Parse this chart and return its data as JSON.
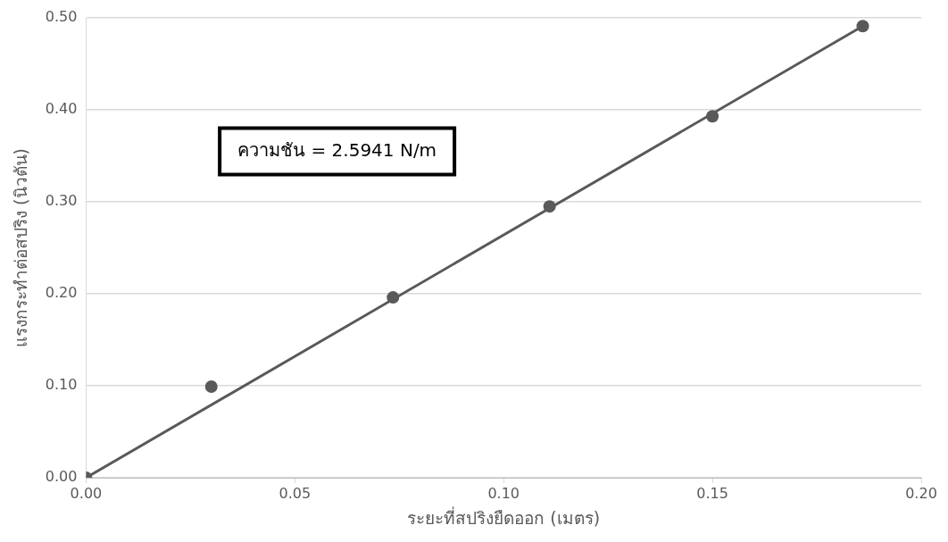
{
  "chart_data": {
    "type": "scatter",
    "xlabel": "ระยะที่สปริงยืดออก (เมตร)",
    "ylabel": "แรงกระทำต่อสปริง (นิวตัน)",
    "x": [
      0,
      0.03,
      0.0735,
      0.111,
      0.15,
      0.186
    ],
    "series": [
      {
        "color": "#595959",
        "values": [
          0,
          0.099,
          0.196,
          0.295,
          0.393,
          0.491
        ]
      },
      {
        "type": "line",
        "color": "#595959",
        "x": [
          0,
          0.186
        ],
        "values": [
          0,
          0.491
        ],
        "marker": "none"
      }
    ],
    "xlim": [
      0,
      0.2
    ],
    "xticks": [
      {
        "value": 0,
        "label": "0.00"
      },
      {
        "value": 0.05,
        "label": "0.05"
      },
      {
        "value": 0.1,
        "label": "0.10"
      },
      {
        "value": 0.15,
        "label": "0.15"
      },
      {
        "value": 0.2,
        "label": "0.20"
      }
    ],
    "ylim": [
      0,
      0.5
    ],
    "yticks": [
      {
        "value": 0,
        "label": "0.00"
      },
      {
        "value": 0.1,
        "label": "0.10"
      },
      {
        "value": 0.2,
        "label": "0.20"
      },
      {
        "value": 0.3,
        "label": "0.30"
      },
      {
        "value": 0.4,
        "label": "0.40"
      },
      {
        "value": 0.5,
        "label": "0.50"
      }
    ],
    "grid": "y",
    "marker": "circle",
    "legend": false,
    "annotations": [
      "ความชัน = 2.5941 N/m"
    ]
  }
}
